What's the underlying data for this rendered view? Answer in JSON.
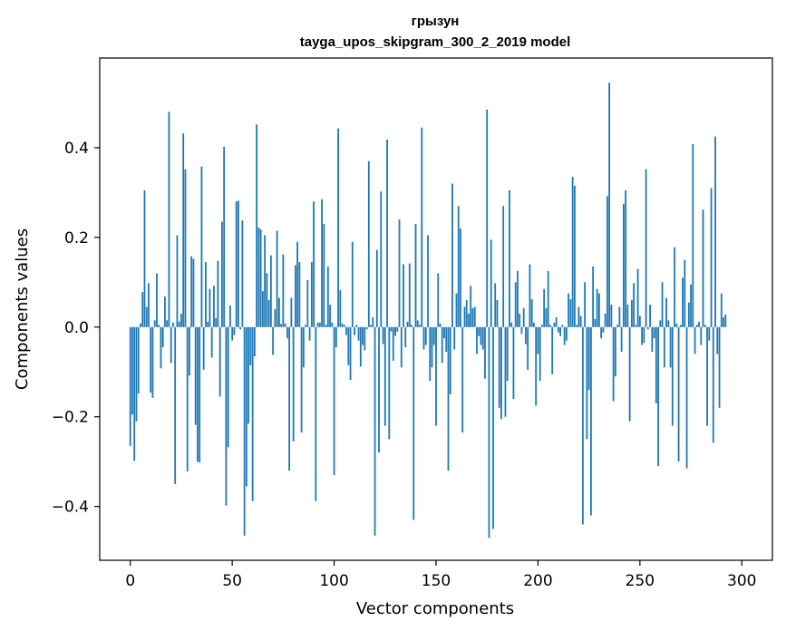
{
  "chart_data": {
    "type": "bar",
    "title": "грызун",
    "subtitle": "tayga_upos_skipgram_300_2_2019 model",
    "xlabel": "Vector components",
    "ylabel": "Components values",
    "xlim": [
      -15,
      315
    ],
    "ylim": [
      -0.52,
      0.6
    ],
    "xticks": [
      0,
      50,
      100,
      150,
      200,
      250,
      300
    ],
    "xtick_labels": [
      "0",
      "50",
      "100",
      "150",
      "200",
      "250",
      "300"
    ],
    "yticks": [
      -0.4,
      -0.2,
      0.0,
      0.2,
      0.4
    ],
    "ytick_labels": [
      "−0.4",
      "−0.2",
      "0.0",
      "0.2",
      "0.4"
    ],
    "grid": false,
    "bar_color": "#1f77b4",
    "values": [
      -0.265,
      -0.195,
      -0.298,
      -0.21,
      -0.148,
      0.008,
      0.078,
      0.305,
      0.045,
      0.098,
      -0.146,
      -0.158,
      0.015,
      0.12,
      0.005,
      -0.092,
      -0.045,
      0.068,
      0.015,
      0.48,
      -0.08,
      0.01,
      -0.35,
      0.205,
      0.012,
      0.03,
      0.432,
      0.352,
      -0.322,
      -0.108,
      0.158,
      0.152,
      -0.218,
      -0.3,
      -0.302,
      0.358,
      -0.095,
      0.145,
      0.012,
      0.085,
      -0.068,
      0.092,
      0.02,
      0.148,
      -0.155,
      0.235,
      0.402,
      -0.398,
      -0.268,
      0.048,
      -0.03,
      -0.018,
      0.28,
      0.282,
      -0.005,
      0.238,
      -0.465,
      -0.355,
      -0.215,
      -0.085,
      -0.388,
      -0.065,
      0.452,
      0.222,
      0.218,
      0.08,
      0.205,
      0.12,
      0.06,
      0.16,
      -0.062,
      0.04,
      0.215,
      0.065,
      0.007,
      0.162,
      0.008,
      -0.025,
      -0.32,
      0.065,
      -0.255,
      0.138,
      0.19,
      0.145,
      -0.235,
      -0.09,
      0.005,
      0.105,
      -0.03,
      0.145,
      0.28,
      -0.388,
      0.01,
      0.01,
      0.285,
      0.23,
      0.005,
      0.135,
      0.05,
      0.01,
      -0.33,
      -0.045,
      0.443,
      0.082,
      0.008,
      0.005,
      -0.018,
      -0.085,
      -0.118,
      0.19,
      -0.018,
      0.005,
      -0.03,
      -0.088,
      -0.04,
      -0.052,
      -0.005,
      0.37,
      0.005,
      0.022,
      -0.465,
      0.172,
      -0.28,
      0.302,
      -0.038,
      -0.22,
      0.418,
      -0.25,
      -0.01,
      -0.075,
      -0.02,
      -0.01,
      0.24,
      -0.09,
      0.14,
      -0.045,
      0.012,
      0.142,
      0.005,
      -0.43,
      0.23,
      0.015,
      0.005,
      0.445,
      -0.05,
      -0.04,
      0.205,
      -0.12,
      -0.09,
      -0.04,
      -0.22,
      0.12,
      0.008,
      -0.08,
      -0.025,
      -0.055,
      -0.32,
      -0.15,
      0.32,
      -0.05,
      0.075,
      0.27,
      0.22,
      -0.235,
      0.045,
      0.06,
      0.03,
      0.092,
      0.042,
      0.045,
      -0.06,
      -0.02,
      -0.04,
      -0.05,
      -0.115,
      0.485,
      -0.47,
      0.195,
      -0.45,
      0.098,
      0.06,
      -0.18,
      -0.205,
      0.27,
      -0.2,
      -0.12,
      0.305,
      0.01,
      -0.16,
      0.1,
      0.125,
      0.03,
      -0.015,
      0.042,
      -0.038,
      -0.095,
      0.14,
      0.062,
      0.01,
      -0.175,
      -0.06,
      -0.12,
      0.005,
      0.085,
      0.042,
      0.125,
      0.005,
      -0.105,
      0.01,
      0.022,
      -0.012,
      -0.02,
      0.005,
      -0.04,
      -0.03,
      0.075,
      0.062,
      0.335,
      0.315,
      0.005,
      0.045,
      0.025,
      -0.44,
      0.1,
      -0.25,
      -0.14,
      -0.42,
      0.135,
      0.018,
      0.085,
      0.075,
      -0.025,
      -0.012,
      0.03,
      0.292,
      0.545,
      0.05,
      -0.165,
      -0.11,
      0.005,
      0.045,
      -0.055,
      0.275,
      0.305,
      0.05,
      -0.21,
      0.06,
      0.098,
      0.005,
      0.13,
      0.025,
      -0.04,
      -0.035,
      0.352,
      -0.005,
      0.05,
      -0.055,
      -0.025,
      -0.17,
      -0.31,
      0.015,
      0.1,
      -0.09,
      0.065,
      0.015,
      -0.09,
      -0.22,
      0.178,
      0.008,
      -0.3,
      0.005,
      0.11,
      0.15,
      -0.315,
      0.055,
      0.095,
      0.408,
      -0.06,
      0.005,
      0.012,
      -0.04,
      0.262,
      0.005,
      -0.22,
      -0.03,
      0.31,
      -0.258,
      0.425,
      -0.06,
      -0.18,
      0.075,
      0.022,
      0.028
    ]
  }
}
